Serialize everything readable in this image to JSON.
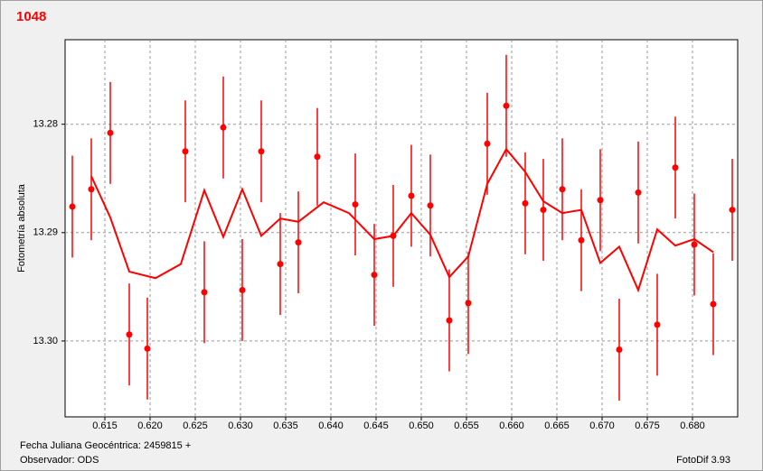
{
  "chart_data": {
    "type": "errorbar",
    "title": "1048",
    "xlabel": "Fecha Juliana Geocéntrica: 2459815 +",
    "ylabel": "Fotometría absoluta",
    "observer": "Observador: ODS",
    "software": "FotoDif 3.93",
    "xlim": [
      0.6106,
      0.685
    ],
    "ylim": [
      13.307,
      13.2722
    ],
    "xticks": [
      0.615,
      {
        "value": 0.62,
        "label": "0.620"
      },
      0.625,
      {
        "value": 0.63,
        "label": "0.630"
      },
      0.635,
      {
        "value": 0.64,
        "label": "0.640"
      },
      0.645,
      {
        "value": 0.65,
        "label": "0.650"
      },
      0.655,
      {
        "value": 0.66,
        "label": "0.660"
      },
      0.665,
      {
        "value": 0.67,
        "label": "0.670"
      },
      0.675,
      {
        "value": 0.68,
        "label": "0.680"
      }
    ],
    "yticks": [
      13.28,
      13.29,
      {
        "value": 13.3,
        "label": "13.30"
      }
    ],
    "grid": true,
    "series": [
      {
        "type": "errorbar",
        "color": "#ff0000",
        "x": [
          0.6114,
          0.6135,
          0.6156,
          0.6177,
          0.6197,
          0.6239,
          0.626,
          0.6281,
          0.6302,
          0.6323,
          0.6344,
          0.6364,
          0.6385,
          0.6427,
          0.6448,
          0.6469,
          0.6489,
          0.651,
          0.6531,
          0.6552,
          0.6573,
          0.6594,
          0.6615,
          0.6635,
          0.6656,
          0.6677,
          0.6698,
          0.6719,
          0.674,
          0.6761,
          0.6781,
          0.6802,
          0.6823,
          0.6844
        ],
        "values": [
          13.2876,
          13.286,
          13.2808,
          13.2994,
          13.3007,
          13.2825,
          13.2955,
          13.2803,
          13.2953,
          13.2825,
          13.2929,
          13.2909,
          13.283,
          13.2874,
          13.2939,
          13.2903,
          13.2866,
          13.2875,
          13.2981,
          13.2965,
          13.2818,
          13.2783,
          13.2873,
          13.2879,
          13.286,
          13.2907,
          13.287,
          13.3008,
          13.2863,
          13.2985,
          13.284,
          13.2911,
          13.2966,
          13.2879
        ],
        "errors": [
          0.0047,
          0.0047,
          0.0047,
          0.0047,
          0.0047,
          0.0047,
          0.0047,
          0.0047,
          0.0047,
          0.0047,
          0.0047,
          0.0047,
          0.0045,
          0.0047,
          0.0047,
          0.0047,
          0.0047,
          0.0047,
          0.0047,
          0.0047,
          0.0047,
          0.0047,
          0.0047,
          0.0047,
          0.0047,
          0.0047,
          0.0047,
          0.0047,
          0.0047,
          0.0047,
          0.0047,
          0.0047,
          0.0047,
          0.0047
        ]
      },
      {
        "type": "line",
        "color": "#ff0000",
        "x": [
          0.6135,
          0.6156,
          0.6177,
          0.6206,
          0.6234,
          0.626,
          0.6281,
          0.6302,
          0.6323,
          0.6344,
          0.6364,
          0.6392,
          0.642,
          0.6448,
          0.6469,
          0.6489,
          0.651,
          0.6531,
          0.6552,
          0.6573,
          0.6594,
          0.6615,
          0.6635,
          0.6656,
          0.6677,
          0.6698,
          0.6719,
          0.674,
          0.6761,
          0.6781,
          0.6802,
          0.6823
        ],
        "values": [
          13.2848,
          13.2886,
          13.2936,
          13.2942,
          13.2929,
          13.2861,
          13.2904,
          13.286,
          13.2903,
          13.2887,
          13.289,
          13.2872,
          13.2882,
          13.2906,
          13.2903,
          13.2882,
          13.2902,
          13.2941,
          13.2922,
          13.2855,
          13.2823,
          13.2844,
          13.2871,
          13.2882,
          13.2879,
          13.2928,
          13.2913,
          13.2953,
          13.2897,
          13.2912,
          13.2906,
          13.2918
        ]
      }
    ]
  }
}
